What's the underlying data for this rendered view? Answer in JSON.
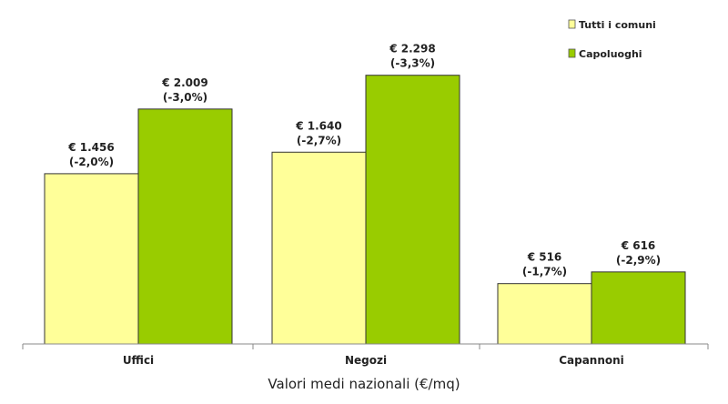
{
  "chart_data": {
    "type": "bar",
    "title": "",
    "xlabel": "Valori medi nazionali (€/mq)",
    "ylabel": "",
    "categories": [
      "Uffici",
      "Negozi",
      "Capannoni"
    ],
    "series": [
      {
        "name": "Tutti i comuni",
        "color": "#ffff99",
        "values": [
          1456,
          1640,
          516
        ],
        "labels": [
          "€ 1.456",
          "€ 1.640",
          "€ 516"
        ],
        "changes": [
          "(-2,0%)",
          "(-2,7%)",
          "(-1,7%)"
        ]
      },
      {
        "name": "Capoluoghi",
        "color": "#99cc00",
        "values": [
          2009,
          2298,
          616
        ],
        "labels": [
          "€ 2.009",
          "€ 2.298",
          "€ 616"
        ],
        "changes": [
          "(-3,0%)",
          "(-3,3%)",
          "(-2,9%)"
        ]
      }
    ],
    "ylim": [
      0,
      2500
    ],
    "grid": false,
    "legend_position": "top-right"
  }
}
